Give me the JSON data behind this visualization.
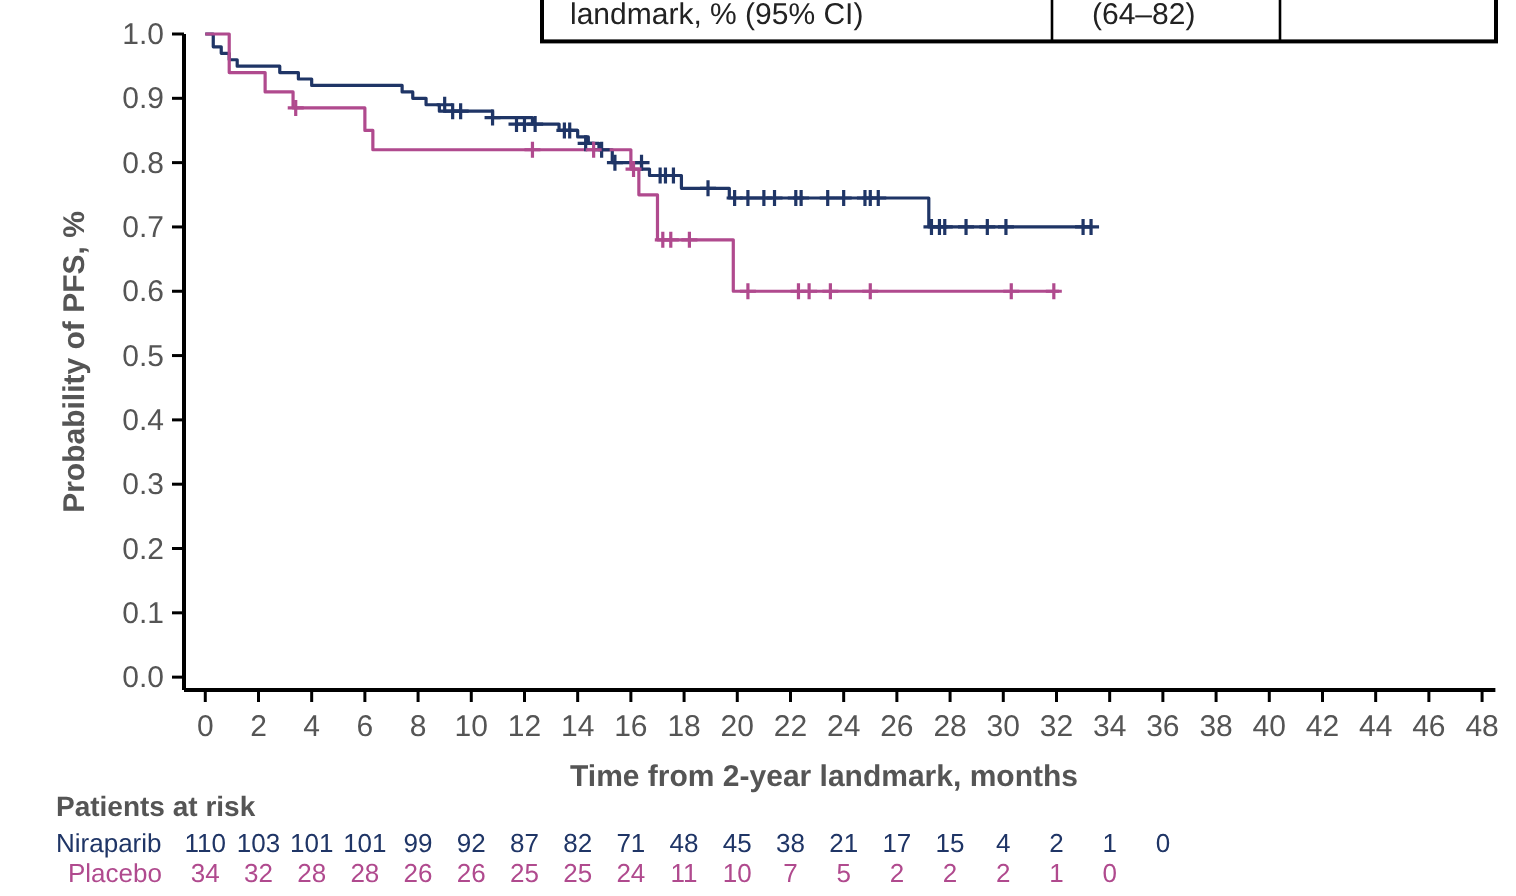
{
  "chart_data": {
    "type": "step",
    "xlabel": "Time from 2-year landmark, months",
    "ylabel": "Probability of PFS, %",
    "annotations": [
      "landmark, % (95% CI)",
      "(64–82)",
      "Patients at risk",
      "110 103 101 101 99 92 87 82 71 48 45 38 21 17 15 4 2 1 0",
      "34 32 28 28 26 26 25 25 24 11 10 7 5 2 2 2 1 0"
    ],
    "xlim": [
      -0.8,
      48.5
    ],
    "xticks": [
      0,
      2,
      4,
      6,
      8,
      10,
      12,
      14,
      16,
      18,
      20,
      22,
      24,
      26,
      28,
      30,
      32,
      34,
      36,
      38,
      40,
      42,
      44,
      46,
      48
    ],
    "ylim": [
      -0.02,
      1.0
    ],
    "yticks": [
      {
        "value": 0,
        "label": "0.0"
      },
      {
        "value": 0.1,
        "label": "0.1"
      },
      {
        "value": 0.2,
        "label": "0.2"
      },
      {
        "value": 0.3,
        "label": "0.3"
      },
      {
        "value": 0.4,
        "label": "0.4"
      },
      {
        "value": 0.5,
        "label": "0.5"
      },
      {
        "value": 0.6,
        "label": "0.6"
      },
      {
        "value": 0.7,
        "label": "0.7"
      },
      {
        "value": 0.8,
        "label": "0.8"
      },
      {
        "value": 0.9,
        "label": "0.9"
      },
      {
        "value": 1,
        "label": "1.0"
      }
    ],
    "grid": false,
    "legend": false,
    "series": [
      {
        "name": "Niraparib",
        "color": "#1f3566",
        "x": [
          0,
          0.3,
          0.6,
          0.9,
          1.2,
          2.8,
          3.5,
          4.0,
          7.4,
          7.8,
          8.3,
          8.8,
          10.8,
          12.3,
          13.3,
          14.0,
          14.4,
          14.8,
          15.3,
          16.4,
          16.7,
          17.9,
          19.7,
          27.2,
          33.3
        ],
        "values": [
          1.0,
          0.98,
          0.97,
          0.96,
          0.95,
          0.94,
          0.93,
          0.92,
          0.91,
          0.9,
          0.89,
          0.88,
          0.87,
          0.86,
          0.85,
          0.84,
          0.83,
          0.82,
          0.8,
          0.79,
          0.78,
          0.76,
          0.745,
          0.7,
          0.7
        ]
      },
      {
        "name": "Placebo",
        "color": "#b04a8e",
        "x": [
          0,
          0.9,
          2.25,
          3.3,
          6.0,
          6.3,
          16.0,
          16.3,
          17.0,
          19.85,
          32.1
        ],
        "values": [
          1.0,
          0.94,
          0.91,
          0.885,
          0.85,
          0.82,
          0.79,
          0.75,
          0.68,
          0.6,
          0.6
        ]
      },
      {
        "type": "scatter",
        "marker": "cross",
        "color": "#1f3566",
        "x": [
          9.0,
          9.3,
          9.6,
          10.8,
          11.7,
          12.0,
          12.4,
          13.5,
          13.7,
          14.3,
          14.9,
          15.4,
          16.4,
          17.1,
          17.3,
          17.6,
          18.9,
          19.9,
          20.4,
          21.0,
          21.4,
          22.2,
          22.4,
          23.4,
          24.0,
          24.8,
          25.0,
          25.3,
          27.3,
          27.6,
          27.8,
          28.6,
          29.4,
          30.1,
          33.0,
          33.3
        ],
        "values": [
          0.89,
          0.88,
          0.88,
          0.87,
          0.86,
          0.86,
          0.86,
          0.85,
          0.85,
          0.83,
          0.82,
          0.8,
          0.8,
          0.78,
          0.78,
          0.78,
          0.76,
          0.745,
          0.745,
          0.745,
          0.745,
          0.745,
          0.745,
          0.745,
          0.745,
          0.745,
          0.745,
          0.745,
          0.7,
          0.7,
          0.7,
          0.7,
          0.7,
          0.7,
          0.7,
          0.7
        ]
      },
      {
        "type": "scatter",
        "marker": "cross",
        "color": "#b04a8e",
        "x": [
          3.4,
          12.3,
          14.6,
          16.1,
          17.2,
          17.5,
          18.2,
          20.4,
          22.3,
          22.7,
          23.5,
          25.0,
          30.3,
          31.9
        ],
        "values": [
          0.885,
          0.82,
          0.82,
          0.79,
          0.68,
          0.68,
          0.68,
          0.6,
          0.6,
          0.6,
          0.6,
          0.6,
          0.6,
          0.6
        ]
      }
    ],
    "line_style": "solid"
  }
}
